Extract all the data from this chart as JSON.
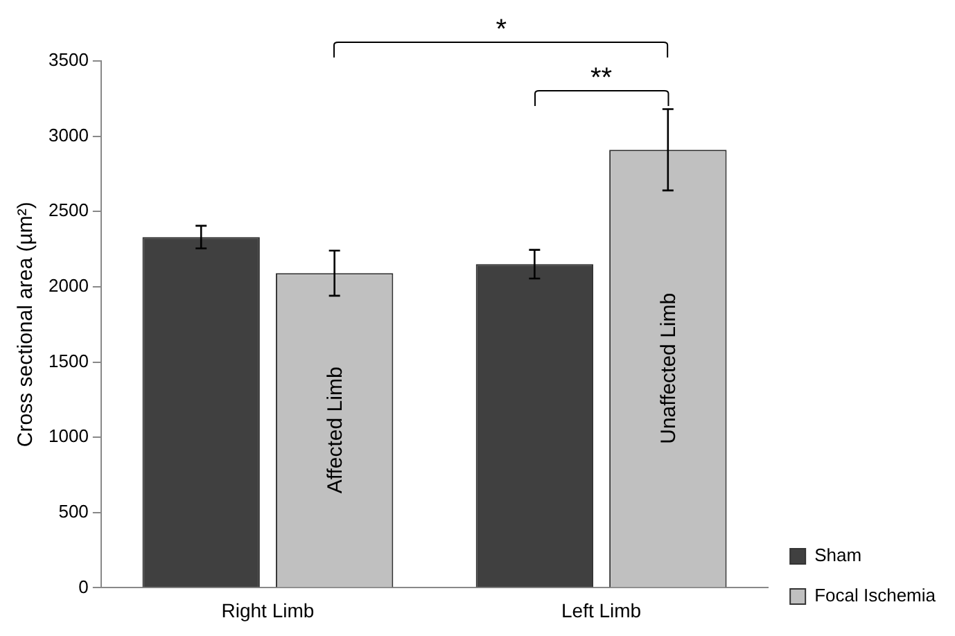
{
  "chart_data": {
    "type": "bar",
    "ylabel": "Cross sectional area (µm²)",
    "categories": [
      "Right Limb",
      "Left Limb"
    ],
    "series": [
      {
        "name": "Sham",
        "color": "#404040",
        "values": [
          2330,
          2150
        ],
        "errors": [
          75,
          95
        ]
      },
      {
        "name": "Focal Ischemia",
        "color": "#c0c0c0",
        "values": [
          2090,
          2910
        ],
        "errors": [
          150,
          270
        ],
        "value_labels": [
          "Affected Limb",
          "Unaffected Limb"
        ]
      }
    ],
    "ylim": [
      0,
      3500
    ],
    "yticks": [
      0,
      500,
      1000,
      1500,
      2000,
      2500,
      3000,
      3500
    ],
    "grid": false,
    "legend": "right",
    "annotations": [
      "*",
      "**"
    ]
  }
}
